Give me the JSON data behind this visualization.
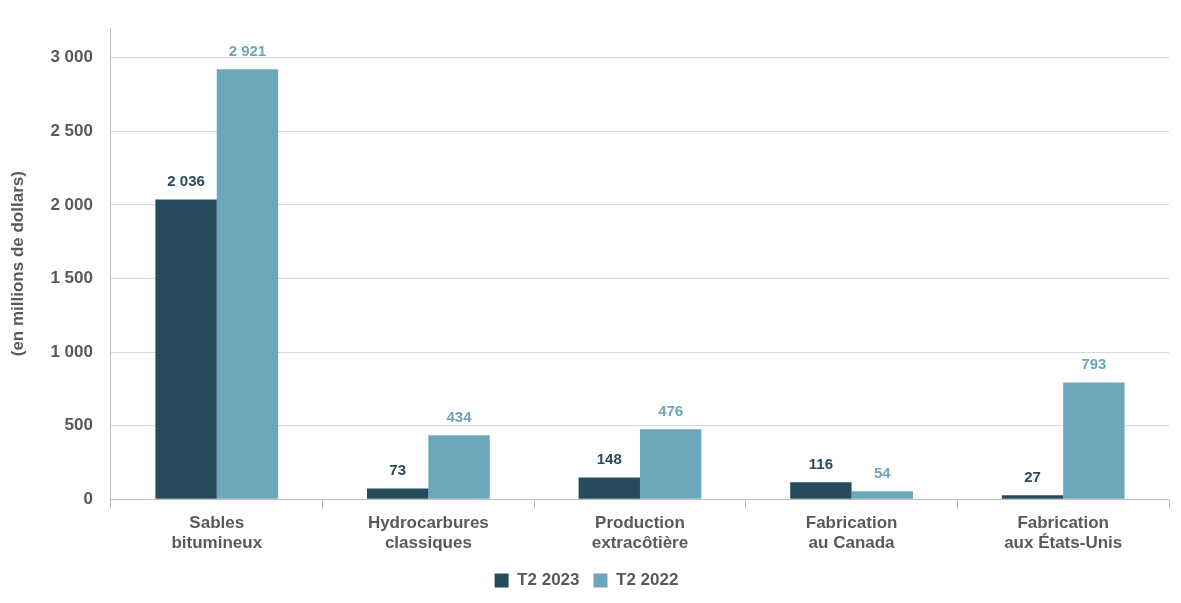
{
  "chart_data": {
    "type": "bar",
    "ylabel": "(en millions de dollars)",
    "categories": [
      "Sables bitumineux",
      "Hydrocarbures classiques",
      "Production extracôtière",
      "Fabrication au Canada",
      "Fabrication aux États-Unis"
    ],
    "series": [
      {
        "name": "T2 2023",
        "color": "#264b5a",
        "values": [
          2036,
          73,
          148,
          116,
          27
        ],
        "value_labels": [
          "2 036",
          "73",
          "148",
          "116",
          "27"
        ]
      },
      {
        "name": "T2 2022",
        "color": "#6ba6ba",
        "values": [
          2921,
          434,
          476,
          54,
          793
        ],
        "value_labels": [
          "2 921",
          "434",
          "476",
          "54",
          "793"
        ]
      }
    ],
    "ylim": [
      0,
      3200
    ],
    "yticks": [
      {
        "value": 0,
        "label": "0"
      },
      {
        "value": 500,
        "label": "500"
      },
      {
        "value": 1000,
        "label": "1 000"
      },
      {
        "value": 1500,
        "label": "1 500"
      },
      {
        "value": 2000,
        "label": "2 000"
      },
      {
        "value": 2500,
        "label": "2 500"
      },
      {
        "value": 3000,
        "label": "3 000"
      }
    ],
    "grid": "y",
    "legend": "bottom"
  }
}
